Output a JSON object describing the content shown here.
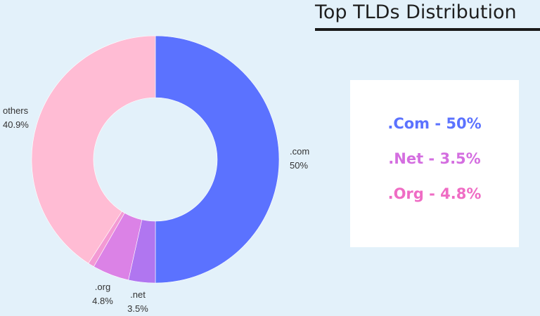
{
  "header": {
    "title": "Top TLDs Distribution"
  },
  "chart_data": {
    "type": "pie",
    "hole": true,
    "slices": [
      {
        "label": ".com",
        "percent_label": "50%",
        "value": 50.0,
        "color": "#5b72ff"
      },
      {
        "label": ".net",
        "percent_label": "3.5%",
        "value": 3.5,
        "color": "#b076f0"
      },
      {
        "label": ".org",
        "percent_label": "4.8%",
        "value": 4.8,
        "color": "#db82e6"
      },
      {
        "label": "",
        "percent_label": "",
        "value": 0.8,
        "color": "#f39ad4"
      },
      {
        "label": "others",
        "percent_label": "40.9%",
        "value": 40.9,
        "color": "#ffbcd4"
      }
    ]
  },
  "legend": {
    "items": [
      {
        "text": ".Com - 50%",
        "color": "#5b72ff"
      },
      {
        "text": ".Net - 3.5%",
        "color": "#d46ee0"
      },
      {
        "text": ".Org - 4.8%",
        "color": "#ef6cc4"
      }
    ]
  }
}
